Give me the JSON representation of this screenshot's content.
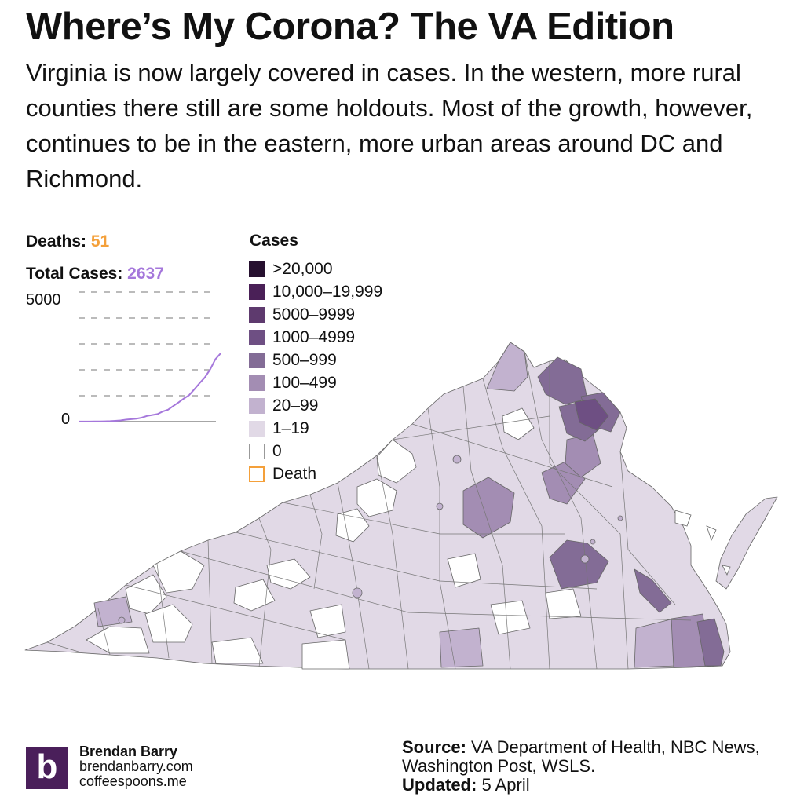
{
  "title": "Where’s My Corona? The VA Edition",
  "subtitle": "Virginia is now largely covered in cases. In the western, more rural counties there still are some holdouts. Most of the growth, however, continues to be in the eastern, more urban areas around DC and Richmond.",
  "stats": {
    "deaths_label": "Deaths:",
    "deaths_value": "51",
    "cases_label": "Total Cases:",
    "cases_value": "2637"
  },
  "chart_data": {
    "type": "line",
    "title": "Total Cases",
    "y_ticks": [
      "5000",
      "0"
    ],
    "ylim": [
      0,
      5000
    ],
    "grid": true,
    "series": [
      {
        "name": "Total Cases",
        "color": "#a577db",
        "values": [
          2,
          2,
          3,
          5,
          8,
          12,
          17,
          30,
          45,
          77,
          94,
          114,
          152,
          219,
          254,
          290,
          391,
          460,
          604,
          739,
          890,
          1020,
          1250,
          1484,
          1706,
          2012,
          2407,
          2637
        ]
      }
    ]
  },
  "legend": {
    "title": "Cases",
    "items": [
      {
        "label": ">20,000",
        "color": "#26102f"
      },
      {
        "label": "10,000–19,999",
        "color": "#4a2057"
      },
      {
        "label": "5000–9999",
        "color": "#5e3a6e"
      },
      {
        "label": "1000–4999",
        "color": "#6e4f83"
      },
      {
        "label": "500–999",
        "color": "#836c96"
      },
      {
        "label": "100–499",
        "color": "#a38db3"
      },
      {
        "label": "20–99",
        "color": "#c2b2cf"
      },
      {
        "label": "1–19",
        "color": "#e1d9e6"
      },
      {
        "label": "0",
        "color": "#ffffff"
      },
      {
        "label": "Death",
        "color": "#f4a03a"
      }
    ]
  },
  "branding": {
    "logo_letter": "b",
    "name": "Brendan Barry",
    "site1": "brendanbarry.com",
    "site2": "coffeespoons.me"
  },
  "source": {
    "label": "Source:",
    "text": "VA Department of Health, NBC News, Washington Post, WSLS.",
    "updated_label": "Updated:",
    "updated_text": "5 April"
  }
}
